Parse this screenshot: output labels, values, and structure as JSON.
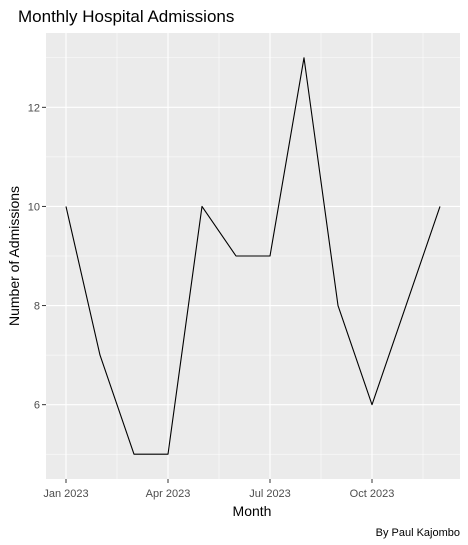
{
  "chart_data": {
    "type": "line",
    "title": "Monthly Hospital Admissions",
    "xlabel": "Month",
    "ylabel": "Number of Admissions",
    "caption": "By Paul Kajombo",
    "x": [
      "2023-01",
      "2023-02",
      "2023-03",
      "2023-04",
      "2023-05",
      "2023-06",
      "2023-07",
      "2023-08",
      "2023-09",
      "2023-10",
      "2023-11",
      "2023-12"
    ],
    "y": [
      10,
      7,
      5,
      5,
      10,
      9,
      9,
      13,
      8,
      6,
      8,
      10
    ],
    "x_ticks": [
      {
        "x": "2023-01",
        "label": "Jan 2023"
      },
      {
        "x": "2023-04",
        "label": "Apr 2023"
      },
      {
        "x": "2023-07",
        "label": "Jul 2023"
      },
      {
        "x": "2023-10",
        "label": "Oct 2023"
      }
    ],
    "y_ticks": [
      6,
      8,
      10,
      12
    ],
    "ylim": [
      4.5,
      13.5
    ],
    "grid": true,
    "colors": {
      "panel": "#ebebeb",
      "grid": "#ffffff",
      "line": "#000000",
      "tick_text": "#4d4d4d"
    }
  }
}
